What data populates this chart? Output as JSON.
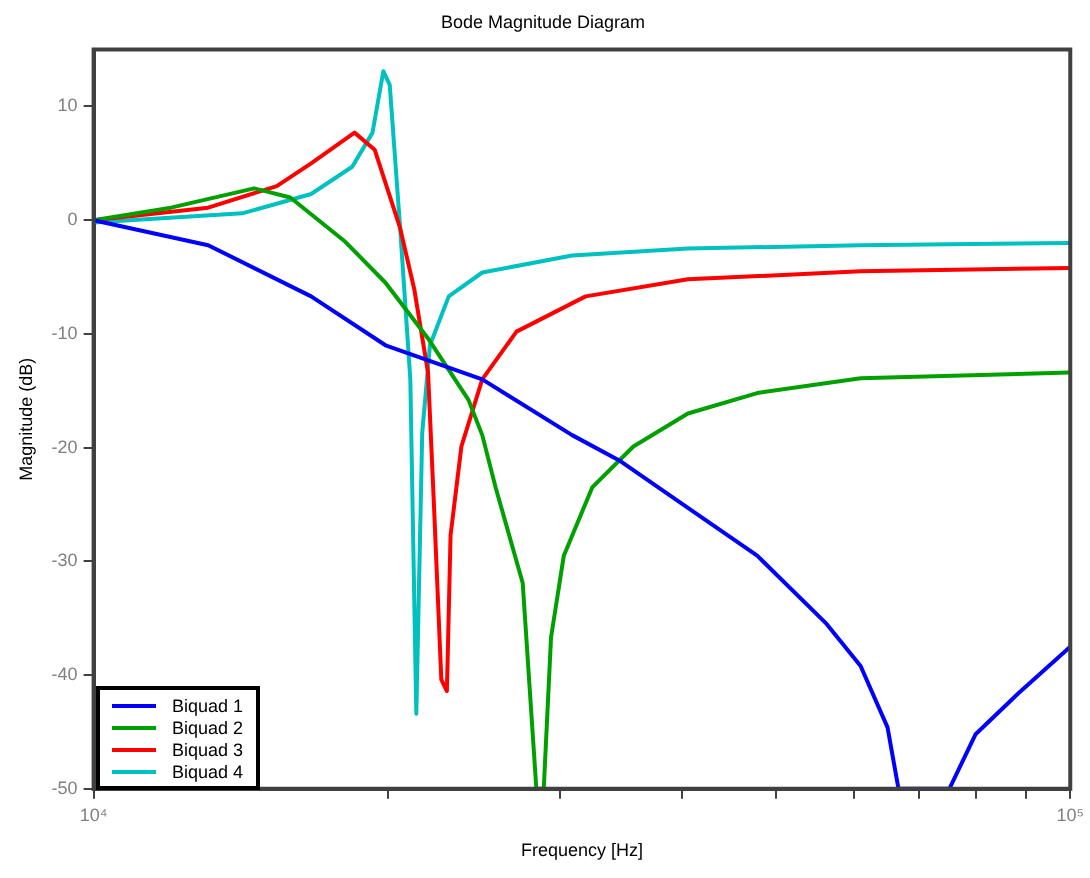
{
  "chart_data": {
    "type": "line",
    "title": "Bode Magnitude Diagram",
    "xlabel": "Frequency [Hz]",
    "ylabel": "Magnitude (dB)",
    "log": "x",
    "xlim": [
      10000,
      100000
    ],
    "ylim": [
      -50,
      15
    ],
    "xticks": [
      {
        "value": 10000,
        "label": "10⁴"
      },
      {
        "value": 20000,
        "label": null
      },
      {
        "value": 30000,
        "label": null
      },
      {
        "value": 40000,
        "label": null
      },
      {
        "value": 50000,
        "label": null
      },
      {
        "value": 60000,
        "label": null
      },
      {
        "value": 70000,
        "label": null
      },
      {
        "value": 80000,
        "label": null
      },
      {
        "value": 90000,
        "label": null
      },
      {
        "value": 100000,
        "label": "10⁵"
      }
    ],
    "yticks": [
      -50,
      -40,
      -30,
      -20,
      -10,
      0,
      10
    ],
    "grid": false,
    "legend": "bottom left",
    "marker": "none",
    "line_style": "solid",
    "series": [
      {
        "name": "Biquad 1",
        "color": "#0000ff",
        "x": [
          10000,
          13100,
          16700,
          19900,
          25000,
          30900,
          34500,
          40600,
          47800,
          56300,
          61000,
          65000,
          66700,
          75200,
          80000,
          88500,
          100000
        ],
        "values": [
          0,
          -2.2,
          -6.7,
          -11,
          -14,
          -18.9,
          -21.1,
          -25.3,
          -29.5,
          -35.5,
          -39.2,
          -44.6,
          -50,
          -50,
          -45.2,
          -41.6,
          -37.5
        ]
      },
      {
        "name": "Biquad 2",
        "color": "#00a000",
        "x": [
          10000,
          12000,
          14600,
          15900,
          18100,
          19900,
          22000,
          24200,
          25000,
          25800,
          27500,
          28400,
          28900,
          29400,
          30300,
          32400,
          35700,
          40600,
          47800,
          61000,
          100000
        ],
        "values": [
          0,
          1.1,
          2.8,
          2,
          -1.9,
          -5.5,
          -10.4,
          -15.8,
          -18.9,
          -23.5,
          -31.9,
          -50,
          -50,
          -36.7,
          -29.5,
          -23.5,
          -19.9,
          -17,
          -15.2,
          -13.9,
          -13.4
        ]
      },
      {
        "name": "Biquad 3",
        "color": "#ff0000",
        "x": [
          10000,
          13100,
          15400,
          16700,
          18500,
          19400,
          20600,
          21300,
          22000,
          22300,
          22700,
          23000,
          23200,
          23800,
          25000,
          27100,
          31900,
          40600,
          61000,
          100000
        ],
        "values": [
          0,
          1.1,
          3,
          5,
          7.7,
          6.2,
          -0.7,
          -6.1,
          -13.4,
          -24.7,
          -40.4,
          -41.4,
          -27.7,
          -19.9,
          -14,
          -9.8,
          -6.7,
          -5.2,
          -4.5,
          -4.2
        ]
      },
      {
        "name": "Biquad 4",
        "color": "#00c0c0",
        "x": [
          10000,
          14200,
          16700,
          18400,
          19300,
          19800,
          20100,
          20600,
          21100,
          21400,
          21700,
          22100,
          23100,
          25000,
          30900,
          40600,
          61000,
          100000
        ],
        "values": [
          -0.2,
          0.6,
          2.3,
          4.7,
          7.7,
          13.1,
          11.9,
          -0.7,
          -14,
          -43.4,
          -18.7,
          -11,
          -6.7,
          -4.6,
          -3.1,
          -2.5,
          -2.2,
          -2
        ]
      }
    ]
  }
}
